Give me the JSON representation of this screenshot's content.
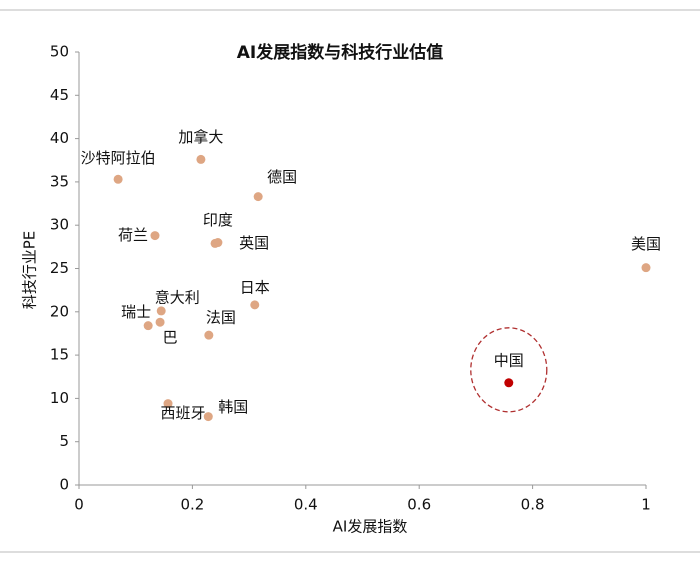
{
  "chart_data": {
    "type": "scatter",
    "title": "AI发展指数与科技行业估值",
    "x_label": "AI发展指数",
    "y_label": "科技行业PE",
    "xlim": [
      0,
      1
    ],
    "xticks": [
      0,
      0.2,
      0.4,
      0.6,
      0.8,
      1
    ],
    "ylim": [
      0,
      50
    ],
    "yticks": [
      0,
      5,
      10,
      15,
      20,
      25,
      30,
      35,
      40,
      45,
      50
    ],
    "grid": false,
    "points": [
      {
        "label": "沙特阿拉伯",
        "x": 0.069,
        "y": 35.3,
        "color": "#dea683"
      },
      {
        "label": "加拿大",
        "x": 0.215,
        "y": 37.6,
        "color": "#dea683"
      },
      {
        "label": "德国",
        "x": 0.316,
        "y": 33.3,
        "color": "#dea683"
      },
      {
        "label": "荷兰",
        "x": 0.134,
        "y": 28.8,
        "color": "#dea683"
      },
      {
        "label": "印度",
        "x": 0.245,
        "y": 28.0,
        "color": "#dea683"
      },
      {
        "label": "英国",
        "x": 0.24,
        "y": 27.9,
        "color": "#dea683"
      },
      {
        "label": "美国",
        "x": 1.0,
        "y": 25.1,
        "color": "#dea683"
      },
      {
        "label": "日本",
        "x": 0.31,
        "y": 20.8,
        "color": "#dea683"
      },
      {
        "label": "意大利",
        "x": 0.145,
        "y": 20.1,
        "color": "#dea683"
      },
      {
        "label": "瑞士",
        "x": 0.122,
        "y": 18.4,
        "color": "#dea683"
      },
      {
        "label": "巴",
        "x": 0.143,
        "y": 18.8,
        "color": "#dea683"
      },
      {
        "label": "法国",
        "x": 0.229,
        "y": 17.3,
        "color": "#dea683"
      },
      {
        "label": "中国",
        "x": 0.758,
        "y": 11.8,
        "color": "#c00000"
      },
      {
        "label": "西班牙",
        "x": 0.157,
        "y": 9.4,
        "color": "#dea683"
      },
      {
        "label": "韩国",
        "x": 0.228,
        "y": 7.9,
        "color": "#dea683"
      }
    ]
  }
}
